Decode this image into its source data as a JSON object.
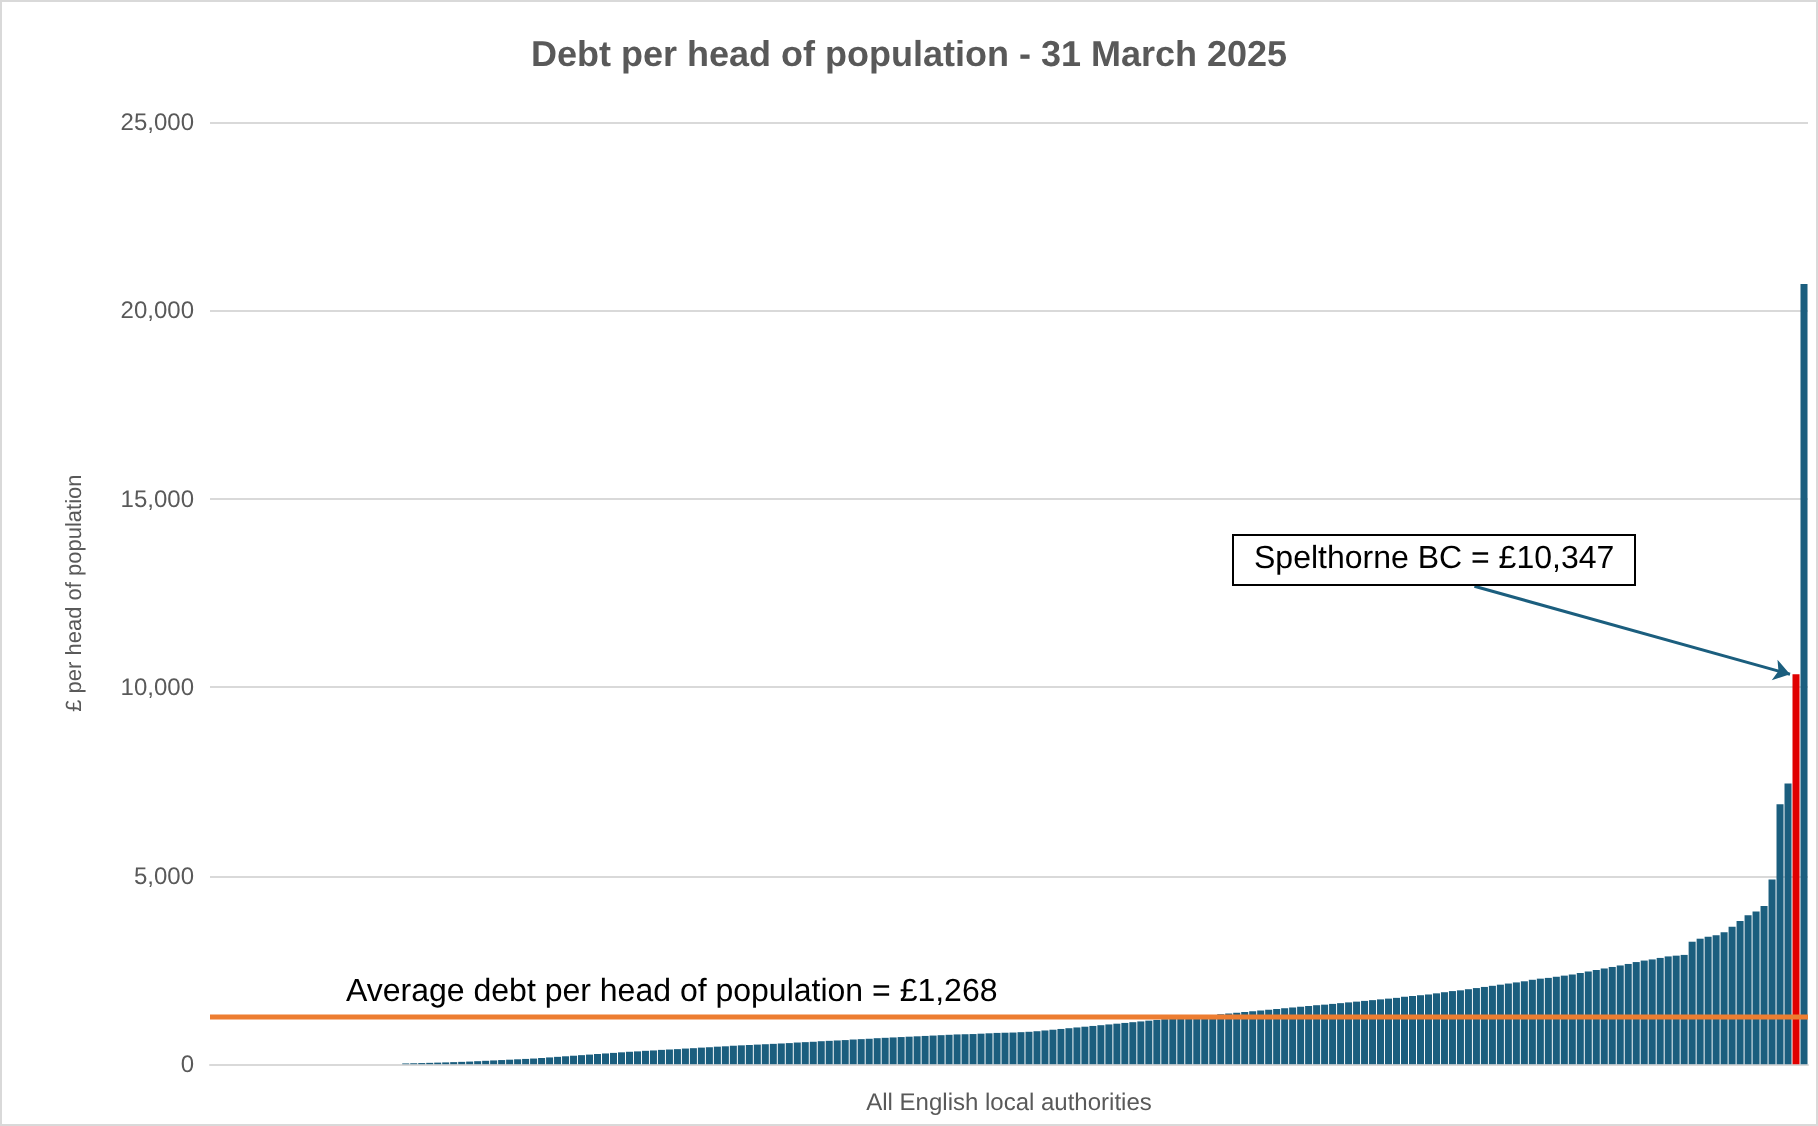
{
  "chart_data": {
    "type": "bar",
    "title": "Debt per head of population - 31 March 2025",
    "xlabel": "All English local authorities",
    "ylabel": "£ per head of population",
    "categories": [
      null,
      null,
      null,
      null,
      null,
      null,
      null,
      null,
      null,
      null,
      null,
      null,
      null,
      null,
      null,
      null,
      null,
      null,
      null,
      null,
      null,
      null,
      null,
      null,
      null,
      null,
      null,
      null,
      null,
      null,
      null,
      null,
      null,
      null,
      null,
      null,
      null,
      null,
      null,
      null,
      null,
      null,
      null,
      null,
      null,
      null,
      null,
      null,
      null,
      null,
      null,
      null,
      null,
      null,
      null,
      null,
      null,
      null,
      null,
      null,
      null,
      null,
      null,
      null,
      null,
      null,
      null,
      null,
      null,
      null,
      null,
      null,
      null,
      null,
      null,
      null,
      null,
      null,
      null,
      null,
      null,
      null,
      null,
      null,
      null,
      null,
      null,
      null,
      null,
      null,
      null,
      null,
      null,
      null,
      null,
      null,
      null,
      null,
      null,
      null,
      null,
      null,
      null,
      null,
      null,
      null,
      null,
      null,
      null,
      null,
      null,
      null,
      null,
      null,
      null,
      null,
      null,
      null,
      null,
      null,
      null,
      null,
      null,
      null,
      null,
      null,
      null,
      null,
      null,
      null,
      null,
      null,
      null,
      null,
      null,
      null,
      null,
      null,
      null,
      null,
      null,
      null,
      null,
      null,
      null,
      null,
      null,
      null,
      null,
      null,
      null,
      null,
      null,
      null,
      null,
      null,
      null,
      null,
      null,
      null,
      null,
      null,
      null,
      null,
      null,
      null,
      null,
      null,
      null,
      null,
      null,
      null,
      null,
      null,
      null,
      null,
      null,
      null,
      null,
      null,
      null,
      null,
      null,
      null,
      null,
      null,
      null,
      null,
      null,
      null,
      null,
      null,
      null,
      null,
      null,
      null,
      null,
      null,
      null,
      null
    ],
    "values": [
      0,
      0,
      0,
      0,
      0,
      0,
      0,
      0,
      0,
      0,
      0,
      0,
      0,
      0,
      0,
      0,
      0,
      0,
      0,
      0,
      0,
      0,
      0,
      0,
      20,
      25,
      30,
      36,
      42,
      48,
      55,
      62,
      70,
      80,
      90,
      100,
      110,
      120,
      130,
      140,
      150,
      165,
      180,
      195,
      210,
      225,
      240,
      255,
      270,
      285,
      300,
      315,
      330,
      340,
      355,
      365,
      380,
      390,
      400,
      415,
      425,
      440,
      450,
      465,
      475,
      490,
      500,
      510,
      520,
      530,
      540,
      550,
      560,
      575,
      585,
      595,
      610,
      620,
      630,
      640,
      655,
      665,
      675,
      690,
      700,
      710,
      720,
      730,
      740,
      750,
      760,
      770,
      780,
      790,
      795,
      800,
      810,
      820,
      830,
      835,
      840,
      850,
      860,
      875,
      895,
      915,
      935,
      955,
      975,
      995,
      1015,
      1035,
      1055,
      1075,
      1095,
      1115,
      1135,
      1155,
      1175,
      1195,
      1210,
      1225,
      1245,
      1265,
      1285,
      1305,
      1325,
      1345,
      1365,
      1385,
      1405,
      1425,
      1445,
      1465,
      1485,
      1505,
      1525,
      1545,
      1565,
      1580,
      1600,
      1620,
      1640,
      1660,
      1680,
      1700,
      1720,
      1740,
      1760,
      1790,
      1810,
      1830,
      1850,
      1880,
      1910,
      1940,
      1960,
      1990,
      2020,
      2050,
      2080,
      2110,
      2140,
      2170,
      2200,
      2240,
      2270,
      2290,
      2320,
      2350,
      2380,
      2420,
      2460,
      2500,
      2540,
      2580,
      2620,
      2660,
      2710,
      2750,
      2780,
      2820,
      2860,
      2880,
      2900,
      3250,
      3330,
      3380,
      3420,
      3500,
      3650,
      3800,
      3950,
      4050,
      4200,
      4900,
      6900,
      7450,
      10347,
      20700
    ],
    "colors": [
      "#1b5e7e",
      "#1b5e7e",
      "#1b5e7e",
      "#1b5e7e",
      "#1b5e7e",
      "#1b5e7e",
      "#1b5e7e",
      "#1b5e7e",
      "#1b5e7e",
      "#1b5e7e",
      "#1b5e7e",
      "#1b5e7e",
      "#1b5e7e",
      "#1b5e7e",
      "#1b5e7e",
      "#1b5e7e",
      "#1b5e7e",
      "#1b5e7e",
      "#1b5e7e",
      "#1b5e7e",
      "#1b5e7e",
      "#1b5e7e",
      "#1b5e7e",
      "#1b5e7e",
      "#1b5e7e",
      "#1b5e7e",
      "#1b5e7e",
      "#1b5e7e",
      "#1b5e7e",
      "#1b5e7e",
      "#1b5e7e",
      "#1b5e7e",
      "#1b5e7e",
      "#1b5e7e",
      "#1b5e7e",
      "#1b5e7e",
      "#1b5e7e",
      "#1b5e7e",
      "#1b5e7e",
      "#1b5e7e",
      "#1b5e7e",
      "#1b5e7e",
      "#1b5e7e",
      "#1b5e7e",
      "#1b5e7e",
      "#1b5e7e",
      "#1b5e7e",
      "#1b5e7e",
      "#1b5e7e",
      "#1b5e7e",
      "#1b5e7e",
      "#1b5e7e",
      "#1b5e7e",
      "#1b5e7e",
      "#1b5e7e",
      "#1b5e7e",
      "#1b5e7e",
      "#1b5e7e",
      "#1b5e7e",
      "#1b5e7e",
      "#1b5e7e",
      "#1b5e7e",
      "#1b5e7e",
      "#1b5e7e",
      "#1b5e7e",
      "#1b5e7e",
      "#1b5e7e",
      "#1b5e7e",
      "#1b5e7e",
      "#1b5e7e",
      "#1b5e7e",
      "#1b5e7e",
      "#1b5e7e",
      "#1b5e7e",
      "#1b5e7e",
      "#1b5e7e",
      "#1b5e7e",
      "#1b5e7e",
      "#1b5e7e",
      "#1b5e7e",
      "#1b5e7e",
      "#1b5e7e",
      "#1b5e7e",
      "#1b5e7e",
      "#1b5e7e",
      "#1b5e7e",
      "#1b5e7e",
      "#1b5e7e",
      "#1b5e7e",
      "#1b5e7e",
      "#1b5e7e",
      "#1b5e7e",
      "#1b5e7e",
      "#1b5e7e",
      "#1b5e7e",
      "#1b5e7e",
      "#1b5e7e",
      "#1b5e7e",
      "#1b5e7e",
      "#1b5e7e",
      "#1b5e7e",
      "#1b5e7e",
      "#1b5e7e",
      "#1b5e7e",
      "#1b5e7e",
      "#1b5e7e",
      "#1b5e7e",
      "#1b5e7e",
      "#1b5e7e",
      "#1b5e7e",
      "#1b5e7e",
      "#1b5e7e",
      "#1b5e7e",
      "#1b5e7e",
      "#1b5e7e",
      "#1b5e7e",
      "#1b5e7e",
      "#1b5e7e",
      "#1b5e7e",
      "#1b5e7e",
      "#1b5e7e",
      "#1b5e7e",
      "#1b5e7e",
      "#1b5e7e",
      "#1b5e7e",
      "#1b5e7e",
      "#1b5e7e",
      "#1b5e7e",
      "#1b5e7e",
      "#1b5e7e",
      "#1b5e7e",
      "#1b5e7e",
      "#1b5e7e",
      "#1b5e7e",
      "#1b5e7e",
      "#1b5e7e",
      "#1b5e7e",
      "#1b5e7e",
      "#1b5e7e",
      "#1b5e7e",
      "#1b5e7e",
      "#1b5e7e",
      "#1b5e7e",
      "#1b5e7e",
      "#1b5e7e",
      "#1b5e7e",
      "#1b5e7e",
      "#1b5e7e",
      "#1b5e7e",
      "#1b5e7e",
      "#1b5e7e",
      "#1b5e7e",
      "#1b5e7e",
      "#1b5e7e",
      "#1b5e7e",
      "#1b5e7e",
      "#1b5e7e",
      "#1b5e7e",
      "#1b5e7e",
      "#1b5e7e",
      "#1b5e7e",
      "#1b5e7e",
      "#1b5e7e",
      "#1b5e7e",
      "#1b5e7e",
      "#1b5e7e",
      "#1b5e7e",
      "#1b5e7e",
      "#1b5e7e",
      "#1b5e7e",
      "#1b5e7e",
      "#1b5e7e",
      "#1b5e7e",
      "#1b5e7e",
      "#1b5e7e",
      "#1b5e7e",
      "#1b5e7e",
      "#1b5e7e",
      "#1b5e7e",
      "#1b5e7e",
      "#1b5e7e",
      "#1b5e7e",
      "#1b5e7e",
      "#1b5e7e",
      "#1b5e7e",
      "#1b5e7e",
      "#1b5e7e",
      "#1b5e7e",
      "#1b5e7e",
      "#1b5e7e",
      "#1b5e7e",
      "#1b5e7e",
      "#1b5e7e",
      "#1b5e7e",
      "#1b5e7e",
      "#1b5e7e",
      "#1b5e7e",
      "#1b5e7e",
      "#e00000",
      "#1b5e7e"
    ],
    "ylim": [
      0,
      25000
    ],
    "yticks": [
      0,
      {
        "value": 5000,
        "label": "5,000"
      },
      {
        "value": 10000,
        "label": "10,000"
      },
      {
        "value": 15000,
        "label": "15,000"
      },
      {
        "value": 20000,
        "label": "20,000"
      },
      {
        "value": 25000,
        "label": "25,000"
      }
    ],
    "grid": "y",
    "ref_lines": [
      {
        "axis": "y",
        "value": 1268,
        "label": "Average debt per head of population = £1,268",
        "color": "#ed7d31"
      }
    ],
    "annotations": [
      "Spelthorne BC = £10,347"
    ]
  }
}
